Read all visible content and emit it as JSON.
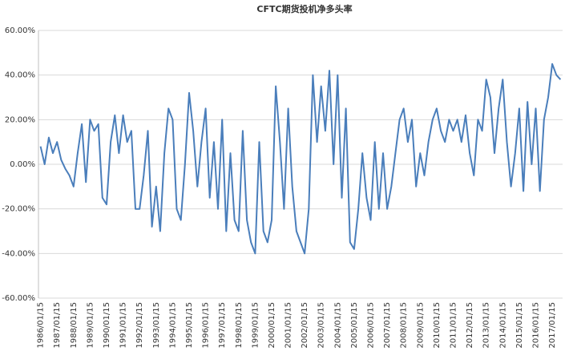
{
  "chart_data": {
    "type": "line",
    "title": "CFTC期货投机净多头率",
    "categories": [
      "1986/01/15",
      null,
      null,
      null,
      "1987/01/15",
      null,
      null,
      null,
      "1988/01/15",
      null,
      null,
      null,
      "1989/01/15",
      null,
      null,
      null,
      "1990/01/15",
      null,
      null,
      null,
      "1991/01/15",
      null,
      null,
      null,
      "1992/01/15",
      null,
      null,
      null,
      "1993/01/15",
      null,
      null,
      null,
      "1994/01/15",
      null,
      null,
      null,
      "1995/01/15",
      null,
      null,
      null,
      "1996/01/15",
      null,
      null,
      null,
      "1997/01/15",
      null,
      null,
      null,
      "1998/01/15",
      null,
      null,
      null,
      "1999/01/15",
      null,
      null,
      null,
      "2000/01/15",
      null,
      null,
      null,
      "2001/01/15",
      null,
      null,
      null,
      "2002/01/15",
      null,
      null,
      null,
      "2003/01/15",
      null,
      null,
      null,
      "2004/01/15",
      null,
      null,
      null,
      "2005/01/15",
      null,
      null,
      null,
      "2006/01/15",
      null,
      null,
      null,
      "2007/01/15",
      null,
      null,
      null,
      "2008/01/15",
      null,
      null,
      null,
      "2009/01/15",
      null,
      null,
      null,
      "2010/01/15",
      null,
      null,
      null,
      "2011/01/15",
      null,
      null,
      null,
      "2012/01/15",
      null,
      null,
      null,
      "2013/01/15",
      null,
      null,
      null,
      "2014/01/15",
      null,
      null,
      null,
      "2015/01/15",
      null,
      null,
      null,
      "2016/01/15",
      null,
      null,
      null,
      "2017/01/15",
      null,
      null
    ],
    "series": [
      {
        "name": "CFTC期货投机净多头率",
        "color": "#4a7ebb",
        "values": [
          8,
          0,
          12,
          5,
          10,
          2,
          -2,
          -5,
          -10,
          5,
          18,
          -8,
          20,
          15,
          18,
          -15,
          -18,
          10,
          22,
          5,
          22,
          10,
          15,
          -20,
          -20,
          -5,
          15,
          -28,
          -10,
          -30,
          5,
          25,
          20,
          -20,
          -25,
          0,
          32,
          15,
          -10,
          10,
          25,
          -15,
          10,
          -20,
          20,
          -30,
          5,
          -25,
          -30,
          15,
          -25,
          -35,
          -40,
          10,
          -30,
          -35,
          -25,
          35,
          10,
          -20,
          25,
          -10,
          -30,
          -35,
          -40,
          -20,
          40,
          10,
          35,
          15,
          42,
          0,
          40,
          -15,
          25,
          -35,
          -38,
          -20,
          5,
          -15,
          -25,
          10,
          -20,
          5,
          -20,
          -10,
          5,
          20,
          25,
          10,
          20,
          -10,
          5,
          -5,
          10,
          20,
          25,
          15,
          10,
          20,
          15,
          20,
          10,
          22,
          5,
          -5,
          20,
          15,
          38,
          30,
          5,
          25,
          38,
          10,
          -10,
          5,
          25,
          -12,
          28,
          0,
          25,
          -12,
          20,
          30,
          45,
          40,
          38
        ]
      }
    ],
    "ylim": [
      -60,
      60
    ],
    "yticks": [
      {
        "value": -60,
        "label": "-60.00%"
      },
      {
        "value": -40,
        "label": "-40.00%"
      },
      {
        "value": -20,
        "label": "-20.00%"
      },
      {
        "value": 0,
        "label": "0.00%"
      },
      {
        "value": 20,
        "label": "20.00%"
      },
      {
        "value": 40,
        "label": "40.00%"
      },
      {
        "value": 60,
        "label": "60.00%"
      }
    ],
    "grid": true
  }
}
